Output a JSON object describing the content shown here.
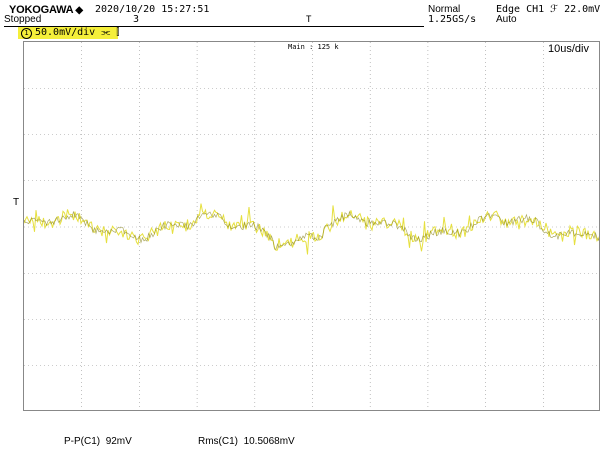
{
  "header": {
    "brand": "YOKOGAWA",
    "brand_mark": "◆",
    "datetime": "2020/10/20 15:27:51",
    "state": "Stopped",
    "acq_count": "3",
    "trigger_pos_marker": "T",
    "acq_mode": "Normal",
    "sample_rate": "1.25GS/s",
    "trigger_desc": "Edge CH1 ℱ 22.0mV",
    "trigger_mode": "Auto"
  },
  "channel": {
    "number": "1",
    "scale": "50.0mV/div",
    "suffix": "⫘ ⫿",
    "color": "#f5ef3a"
  },
  "screen": {
    "main_label": "Main : 125 k",
    "time_div": "10us/div",
    "trigger_level_marker": "T"
  },
  "measurements": [
    {
      "label": "P-P(C1)",
      "value": "92mV"
    },
    {
      "label": "Rms(C1)",
      "value": "10.5068mV"
    }
  ]
}
